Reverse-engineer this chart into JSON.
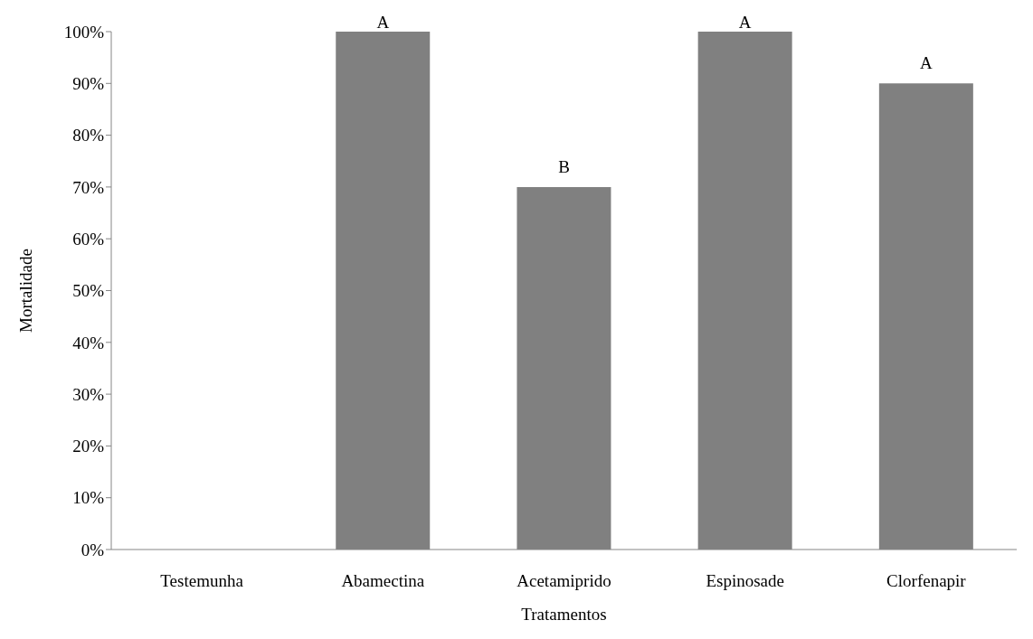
{
  "chart_data": {
    "type": "bar",
    "xlabel": "Tratamentos",
    "ylabel": "Mortalidade",
    "categories": [
      "Testemunha",
      "Abamectina",
      "Acetamiprido",
      "Espinosade",
      "Clorfenapir"
    ],
    "values": [
      0,
      100,
      70,
      100,
      90
    ],
    "color": "#808080",
    "ylim": [
      0,
      100
    ],
    "yticks": [
      {
        "value": 0,
        "label": "0%"
      },
      {
        "value": 10,
        "label": "10%"
      },
      {
        "value": 20,
        "label": "20%"
      },
      {
        "value": 30,
        "label": "30%"
      },
      {
        "value": 40,
        "label": "40%"
      },
      {
        "value": 50,
        "label": "50%"
      },
      {
        "value": 60,
        "label": "60%"
      },
      {
        "value": 70,
        "label": "70%"
      },
      {
        "value": 80,
        "label": "80%"
      },
      {
        "value": 90,
        "label": "90%"
      },
      {
        "value": 100,
        "label": "100%"
      }
    ],
    "grid": false,
    "annotations": [
      {
        "text": "A",
        "x": "Abamectina",
        "y": 100
      },
      {
        "text": "B",
        "x": "Acetamiprido",
        "y": 70
      },
      {
        "text": "A",
        "x": "Espinosade",
        "y": 100
      },
      {
        "text": "A",
        "x": "Clorfenapir",
        "y": 90
      }
    ]
  }
}
